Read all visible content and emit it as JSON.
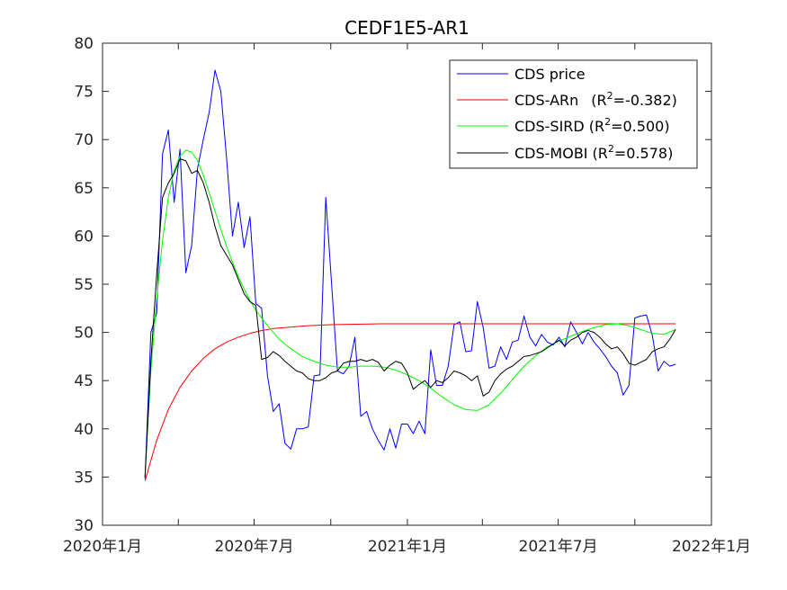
{
  "chart_data": {
    "type": "line",
    "title": "CEDF1E5-AR1",
    "xlabel": "",
    "ylabel": "",
    "ylim": [
      30,
      80
    ],
    "yticks": [
      "30",
      "35",
      "40",
      "45",
      "50",
      "55",
      "60",
      "65",
      "70",
      "75",
      "80"
    ],
    "xlim": [
      "2020-01-01",
      "2022-01-01"
    ],
    "xticks": [
      {
        "date": "2020-01-01",
        "label": "2020年1月"
      },
      {
        "date": "2020-07-01",
        "label": "2020年7月"
      },
      {
        "date": "2021-01-01",
        "label": "2021年1月"
      },
      {
        "date": "2021-07-01",
        "label": "2021年7月"
      },
      {
        "date": "2022-01-01",
        "label": "2022年1月"
      }
    ],
    "grid": false,
    "legend": {
      "placement": "top-right",
      "entries": [
        {
          "key": "price",
          "label": "CDS price",
          "r2": ""
        },
        {
          "key": "arn",
          "label": "CDS-ARn",
          "r2": "-0.382"
        },
        {
          "key": "sird",
          "label": "CDS-SIRD",
          "r2": "0.500"
        },
        {
          "key": "mobi",
          "label": "CDS-MOBI",
          "r2": "0.578"
        }
      ]
    },
    "series": [
      {
        "key": "price",
        "name": "CDS price",
        "color": "#0000ff",
        "points": [
          [
            "2020-02-21",
            34.8
          ],
          [
            "2020-02-28",
            50.0
          ],
          [
            "2020-03-06",
            52.0
          ],
          [
            "2020-03-13",
            68.5
          ],
          [
            "2020-03-20",
            71.0
          ],
          [
            "2020-03-27",
            63.5
          ],
          [
            "2020-04-03",
            69.0
          ],
          [
            "2020-04-10",
            56.2
          ],
          [
            "2020-04-17",
            59.0
          ],
          [
            "2020-04-24",
            67.0
          ],
          [
            "2020-05-01",
            70.0
          ],
          [
            "2020-05-08",
            72.8
          ],
          [
            "2020-05-15",
            77.2
          ],
          [
            "2020-05-22",
            75.0
          ],
          [
            "2020-05-29",
            68.0
          ],
          [
            "2020-06-05",
            60.0
          ],
          [
            "2020-06-12",
            63.5
          ],
          [
            "2020-06-19",
            58.8
          ],
          [
            "2020-06-26",
            62.0
          ],
          [
            "2020-07-03",
            53.0
          ],
          [
            "2020-07-10",
            52.5
          ],
          [
            "2020-07-17",
            45.5
          ],
          [
            "2020-07-24",
            41.8
          ],
          [
            "2020-07-31",
            42.6
          ],
          [
            "2020-08-07",
            38.5
          ],
          [
            "2020-08-14",
            37.9
          ],
          [
            "2020-08-21",
            40.0
          ],
          [
            "2020-08-28",
            40.0
          ],
          [
            "2020-09-04",
            40.2
          ],
          [
            "2020-09-11",
            45.5
          ],
          [
            "2020-09-18",
            45.6
          ],
          [
            "2020-09-25",
            64.0
          ],
          [
            "2020-10-02",
            55.0
          ],
          [
            "2020-10-09",
            46.0
          ],
          [
            "2020-10-16",
            45.7
          ],
          [
            "2020-10-23",
            46.5
          ],
          [
            "2020-10-30",
            49.5
          ],
          [
            "2020-11-06",
            41.3
          ],
          [
            "2020-11-13",
            41.8
          ],
          [
            "2020-11-20",
            40.0
          ],
          [
            "2020-11-27",
            38.8
          ],
          [
            "2020-12-04",
            37.8
          ],
          [
            "2020-12-11",
            40.0
          ],
          [
            "2020-12-18",
            38.0
          ],
          [
            "2020-12-25",
            40.5
          ],
          [
            "2021-01-01",
            40.5
          ],
          [
            "2021-01-08",
            39.5
          ],
          [
            "2021-01-15",
            40.8
          ],
          [
            "2021-01-22",
            39.5
          ],
          [
            "2021-01-29",
            48.2
          ],
          [
            "2021-02-05",
            44.5
          ],
          [
            "2021-02-12",
            44.5
          ],
          [
            "2021-02-19",
            46.5
          ],
          [
            "2021-02-26",
            50.8
          ],
          [
            "2021-03-05",
            51.1
          ],
          [
            "2021-03-12",
            48.0
          ],
          [
            "2021-03-19",
            48.1
          ],
          [
            "2021-03-26",
            53.2
          ],
          [
            "2021-04-02",
            50.5
          ],
          [
            "2021-04-09",
            46.3
          ],
          [
            "2021-04-16",
            46.5
          ],
          [
            "2021-04-23",
            48.5
          ],
          [
            "2021-04-30",
            47.2
          ],
          [
            "2021-05-07",
            49.0
          ],
          [
            "2021-05-14",
            49.2
          ],
          [
            "2021-05-21",
            51.7
          ],
          [
            "2021-05-28",
            49.5
          ],
          [
            "2021-06-04",
            48.6
          ],
          [
            "2021-06-11",
            49.8
          ],
          [
            "2021-06-18",
            49.0
          ],
          [
            "2021-06-25",
            48.7
          ],
          [
            "2021-07-02",
            49.5
          ],
          [
            "2021-07-09",
            48.5
          ],
          [
            "2021-07-16",
            51.1
          ],
          [
            "2021-07-23",
            50.0
          ],
          [
            "2021-07-30",
            48.8
          ],
          [
            "2021-08-06",
            50.0
          ],
          [
            "2021-08-13",
            49.0
          ],
          [
            "2021-08-20",
            48.3
          ],
          [
            "2021-08-27",
            47.5
          ],
          [
            "2021-09-03",
            46.5
          ],
          [
            "2021-09-10",
            45.8
          ],
          [
            "2021-09-17",
            43.5
          ],
          [
            "2021-09-24",
            44.5
          ],
          [
            "2021-10-01",
            51.5
          ],
          [
            "2021-10-08",
            51.7
          ],
          [
            "2021-10-15",
            51.8
          ],
          [
            "2021-10-22",
            49.7
          ],
          [
            "2021-10-29",
            46.0
          ],
          [
            "2021-11-05",
            47.0
          ],
          [
            "2021-11-12",
            46.5
          ],
          [
            "2021-11-19",
            46.7
          ]
        ]
      },
      {
        "key": "arn",
        "name": "CDS-ARn",
        "color": "#ff0000",
        "points": [
          [
            "2020-02-21",
            34.6
          ],
          [
            "2020-03-06",
            38.8
          ],
          [
            "2020-03-20",
            42.0
          ],
          [
            "2020-04-03",
            44.3
          ],
          [
            "2020-04-17",
            46.0
          ],
          [
            "2020-05-01",
            47.3
          ],
          [
            "2020-05-15",
            48.3
          ],
          [
            "2020-05-29",
            49.0
          ],
          [
            "2020-06-12",
            49.5
          ],
          [
            "2020-06-26",
            49.9
          ],
          [
            "2020-07-10",
            50.2
          ],
          [
            "2020-07-24",
            50.4
          ],
          [
            "2020-08-07",
            50.5
          ],
          [
            "2020-08-21",
            50.6
          ],
          [
            "2020-09-04",
            50.7
          ],
          [
            "2020-10-01",
            50.8
          ],
          [
            "2020-11-01",
            50.85
          ],
          [
            "2020-12-01",
            50.9
          ],
          [
            "2021-01-01",
            50.9
          ],
          [
            "2021-06-01",
            50.9
          ],
          [
            "2021-11-19",
            50.9
          ]
        ]
      },
      {
        "key": "sird",
        "name": "CDS-SIRD",
        "color": "#00ff00",
        "points": [
          [
            "2020-02-21",
            35.0
          ],
          [
            "2020-02-28",
            46.0
          ],
          [
            "2020-03-06",
            53.5
          ],
          [
            "2020-03-13",
            59.5
          ],
          [
            "2020-03-20",
            64.0
          ],
          [
            "2020-03-27",
            66.8
          ],
          [
            "2020-04-03",
            68.3
          ],
          [
            "2020-04-10",
            68.9
          ],
          [
            "2020-04-17",
            68.7
          ],
          [
            "2020-04-24",
            67.8
          ],
          [
            "2020-05-01",
            66.3
          ],
          [
            "2020-05-08",
            64.5
          ],
          [
            "2020-05-15",
            62.6
          ],
          [
            "2020-05-22",
            60.7
          ],
          [
            "2020-05-29",
            58.9
          ],
          [
            "2020-06-05",
            57.3
          ],
          [
            "2020-06-12",
            55.8
          ],
          [
            "2020-06-19",
            54.5
          ],
          [
            "2020-06-26",
            53.3
          ],
          [
            "2020-07-03",
            52.3
          ],
          [
            "2020-07-17",
            50.7
          ],
          [
            "2020-07-31",
            49.3
          ],
          [
            "2020-08-14",
            48.3
          ],
          [
            "2020-08-28",
            47.5
          ],
          [
            "2020-09-11",
            47.0
          ],
          [
            "2020-09-25",
            46.6
          ],
          [
            "2020-10-09",
            46.4
          ],
          [
            "2020-10-23",
            46.4
          ],
          [
            "2020-11-06",
            46.5
          ],
          [
            "2020-11-20",
            46.5
          ],
          [
            "2020-12-04",
            46.4
          ],
          [
            "2020-12-18",
            46.1
          ],
          [
            "2021-01-01",
            45.6
          ],
          [
            "2021-01-15",
            45.0
          ],
          [
            "2021-01-29",
            44.2
          ],
          [
            "2021-02-12",
            43.3
          ],
          [
            "2021-02-26",
            42.5
          ],
          [
            "2021-03-12",
            42.0
          ],
          [
            "2021-03-26",
            41.9
          ],
          [
            "2021-04-09",
            42.5
          ],
          [
            "2021-04-23",
            43.7
          ],
          [
            "2021-05-07",
            45.1
          ],
          [
            "2021-05-21",
            46.5
          ],
          [
            "2021-06-04",
            47.6
          ],
          [
            "2021-06-18",
            48.5
          ],
          [
            "2021-07-02",
            49.1
          ],
          [
            "2021-07-16",
            49.6
          ],
          [
            "2021-07-30",
            50.1
          ],
          [
            "2021-08-13",
            50.5
          ],
          [
            "2021-08-27",
            50.8
          ],
          [
            "2021-09-10",
            50.9
          ],
          [
            "2021-09-24",
            50.7
          ],
          [
            "2021-10-08",
            50.3
          ],
          [
            "2021-10-22",
            49.9
          ],
          [
            "2021-11-05",
            49.8
          ],
          [
            "2021-11-19",
            50.3
          ]
        ]
      },
      {
        "key": "mobi",
        "name": "CDS-MOBI",
        "color": "#000000",
        "points": [
          [
            "2020-02-21",
            35.0
          ],
          [
            "2020-02-28",
            47.0
          ],
          [
            "2020-03-06",
            56.0
          ],
          [
            "2020-03-13",
            64.0
          ],
          [
            "2020-03-20",
            65.5
          ],
          [
            "2020-03-27",
            66.5
          ],
          [
            "2020-04-03",
            68.0
          ],
          [
            "2020-04-10",
            67.8
          ],
          [
            "2020-04-17",
            66.5
          ],
          [
            "2020-04-24",
            66.8
          ],
          [
            "2020-05-01",
            65.5
          ],
          [
            "2020-05-08",
            63.5
          ],
          [
            "2020-05-15",
            61.0
          ],
          [
            "2020-05-22",
            59.0
          ],
          [
            "2020-05-29",
            58.0
          ],
          [
            "2020-06-05",
            57.0
          ],
          [
            "2020-06-12",
            55.5
          ],
          [
            "2020-06-19",
            54.0
          ],
          [
            "2020-06-26",
            53.2
          ],
          [
            "2020-07-03",
            52.8
          ],
          [
            "2020-07-10",
            47.2
          ],
          [
            "2020-07-17",
            47.4
          ],
          [
            "2020-07-24",
            48.0
          ],
          [
            "2020-07-31",
            47.6
          ],
          [
            "2020-08-07",
            47.0
          ],
          [
            "2020-08-14",
            46.5
          ],
          [
            "2020-08-21",
            46.0
          ],
          [
            "2020-08-28",
            45.8
          ],
          [
            "2020-09-04",
            45.2
          ],
          [
            "2020-09-11",
            45.0
          ],
          [
            "2020-09-18",
            45.0
          ],
          [
            "2020-09-25",
            45.3
          ],
          [
            "2020-10-02",
            45.8
          ],
          [
            "2020-10-09",
            46.0
          ],
          [
            "2020-10-16",
            46.8
          ],
          [
            "2020-10-23",
            47.0
          ],
          [
            "2020-10-30",
            47.0
          ],
          [
            "2020-11-06",
            47.2
          ],
          [
            "2020-11-13",
            47.0
          ],
          [
            "2020-11-20",
            47.2
          ],
          [
            "2020-11-27",
            46.9
          ],
          [
            "2020-12-04",
            46.0
          ],
          [
            "2020-12-11",
            46.6
          ],
          [
            "2020-12-18",
            47.0
          ],
          [
            "2020-12-25",
            46.8
          ],
          [
            "2021-01-01",
            45.8
          ],
          [
            "2021-01-08",
            44.1
          ],
          [
            "2021-01-15",
            44.6
          ],
          [
            "2021-01-22",
            45.0
          ],
          [
            "2021-01-29",
            44.3
          ],
          [
            "2021-02-05",
            45.0
          ],
          [
            "2021-02-12",
            44.8
          ],
          [
            "2021-02-19",
            45.3
          ],
          [
            "2021-02-26",
            46.0
          ],
          [
            "2021-03-05",
            45.8
          ],
          [
            "2021-03-12",
            45.5
          ],
          [
            "2021-03-19",
            45.0
          ],
          [
            "2021-03-26",
            45.5
          ],
          [
            "2021-04-02",
            43.4
          ],
          [
            "2021-04-09",
            43.8
          ],
          [
            "2021-04-16",
            45.0
          ],
          [
            "2021-04-23",
            45.7
          ],
          [
            "2021-04-30",
            46.2
          ],
          [
            "2021-05-07",
            46.5
          ],
          [
            "2021-05-14",
            47.0
          ],
          [
            "2021-05-21",
            47.5
          ],
          [
            "2021-05-28",
            47.6
          ],
          [
            "2021-06-04",
            47.8
          ],
          [
            "2021-06-11",
            48.0
          ],
          [
            "2021-06-18",
            48.4
          ],
          [
            "2021-06-25",
            48.8
          ],
          [
            "2021-07-02",
            49.2
          ],
          [
            "2021-07-09",
            48.6
          ],
          [
            "2021-07-16",
            49.2
          ],
          [
            "2021-07-23",
            49.5
          ],
          [
            "2021-07-30",
            50.0
          ],
          [
            "2021-08-06",
            50.2
          ],
          [
            "2021-08-13",
            50.0
          ],
          [
            "2021-08-20",
            49.5
          ],
          [
            "2021-08-27",
            48.8
          ],
          [
            "2021-09-03",
            48.3
          ],
          [
            "2021-09-10",
            48.5
          ],
          [
            "2021-09-17",
            47.8
          ],
          [
            "2021-09-24",
            46.8
          ],
          [
            "2021-10-01",
            46.6
          ],
          [
            "2021-10-08",
            46.9
          ],
          [
            "2021-10-15",
            47.2
          ],
          [
            "2021-10-22",
            48.0
          ],
          [
            "2021-10-29",
            48.3
          ],
          [
            "2021-11-05",
            48.5
          ],
          [
            "2021-11-12",
            49.3
          ],
          [
            "2021-11-19",
            50.3
          ]
        ]
      }
    ]
  }
}
